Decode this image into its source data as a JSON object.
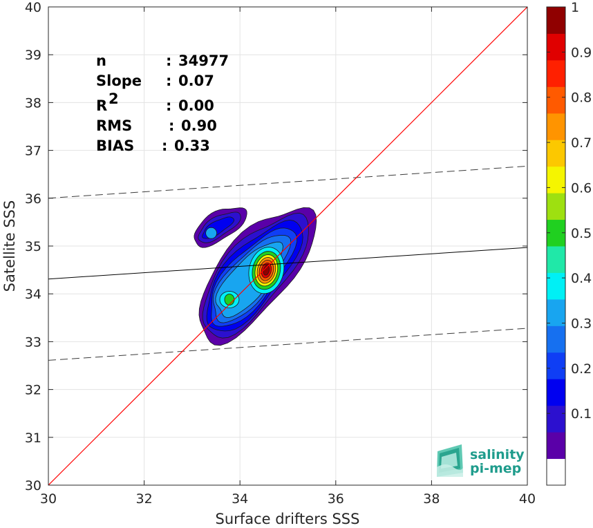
{
  "chart_data": {
    "type": "contour",
    "xlabel": "Surface drifters SSS",
    "ylabel": "Satellite SSS",
    "xlim": [
      30,
      40
    ],
    "ylim": [
      30,
      40
    ],
    "x_ticks": [
      "30",
      "32",
      "34",
      "36",
      "38",
      "40"
    ],
    "y_ticks": [
      "30",
      "31",
      "32",
      "33",
      "34",
      "35",
      "36",
      "37",
      "38",
      "39",
      "40"
    ],
    "grid": true,
    "stats": [
      {
        "label": "n",
        "sep": ": ",
        "value": "34977"
      },
      {
        "label": "Slope",
        "sep": ": ",
        "value": "0.07"
      },
      {
        "label": "R",
        "sup": "2",
        "sep": ": ",
        "value": "0.00"
      },
      {
        "label": "RMS",
        "sep": ": ",
        "value": "0.90"
      },
      {
        "label": "BIAS",
        "sep": ": ",
        "value": "0.33"
      }
    ],
    "identity_line": {
      "x": [
        30,
        40
      ],
      "y": [
        30,
        40
      ],
      "color": "#ff0000"
    },
    "regression_line": {
      "x": [
        30,
        40
      ],
      "y": [
        34.31,
        34.97
      ],
      "color": "#000000"
    },
    "rms_bounds": [
      {
        "x": [
          30,
          40
        ],
        "y": [
          36.0,
          36.67
        ],
        "style": "dashed"
      },
      {
        "x": [
          30,
          40
        ],
        "y": [
          32.61,
          33.28
        ],
        "style": "dashed"
      }
    ],
    "density_peaks": [
      {
        "x": 34.58,
        "y": 34.52,
        "level": 1.0
      },
      {
        "x": 33.78,
        "y": 33.88,
        "level": 0.55
      },
      {
        "x": 33.4,
        "y": 35.3,
        "level": 0.45
      }
    ],
    "colorbar": {
      "ticks": [
        "0.1",
        "0.2",
        "0.3",
        "0.4",
        "0.5",
        "0.6",
        "0.7",
        "0.8",
        "0.9",
        "1"
      ],
      "colors": [
        "#ffffff",
        "#5a00a8",
        "#2c10cf",
        "#0000f0",
        "#0f3ef5",
        "#1670f0",
        "#18a5f0",
        "#00f0f5",
        "#20e8a8",
        "#20d020",
        "#9ee010",
        "#f5f500",
        "#fcc800",
        "#ff9400",
        "#ff5a00",
        "#ff2000",
        "#e00000",
        "#900000"
      ]
    }
  },
  "logo": {
    "line1": "salinity",
    "line2": "pi-mep"
  }
}
